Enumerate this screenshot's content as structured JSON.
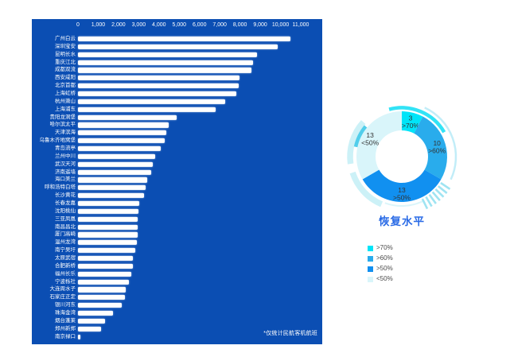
{
  "page": {
    "background": "#FFFFFF"
  },
  "bar_panel": {
    "background": "#0B4EB3"
  },
  "decor_colors": {
    "outer_cyan_arc": "#27E2F5",
    "thin_light_arc": "#8FDFF2",
    "pale_thick_arc": "#C3EEF6",
    "teal_arc": "#3EC9E9",
    "hatch_stripes": "#9FE4F2"
  },
  "chart_data": [
    {
      "type": "bar",
      "orientation": "horizontal",
      "title": "",
      "xlabel": "",
      "ylabel": "",
      "xlim": [
        0,
        11000
      ],
      "x_ticks": [
        0,
        1000,
        2000,
        3000,
        4000,
        5000,
        6000,
        7000,
        8000,
        9000,
        10000,
        11000
      ],
      "x_tick_labels": [
        "0",
        "1,000",
        "2,000",
        "3,000",
        "4,000",
        "5,000",
        "6,000",
        "7,000",
        "8,000",
        "9,000",
        "10,000",
        "11,000"
      ],
      "grid": false,
      "bar_color": "#FFFFFF",
      "label_color": "#FFFFFF",
      "background": "#0B4EB3",
      "note": "*仅统计民航客机航班",
      "categories": [
        "广州白云",
        "深圳宝安",
        "昆明长水",
        "重庆江北",
        "成都双流",
        "西安咸阳",
        "北京首都",
        "上海虹桥",
        "杭州萧山",
        "上海浦东",
        "贵阳龙洞堡",
        "哈尔滨太平",
        "天津滨海",
        "乌鲁木齐地窝堡",
        "青岛流亭",
        "兰州中川",
        "武汉天河",
        "济南遥墙",
        "海口美兰",
        "呼和浩特白塔",
        "长沙黄花",
        "长春龙嘉",
        "沈阳桃仙",
        "三亚凤凰",
        "南昌昌北",
        "厦门高崎",
        "温州龙湾",
        "南宁吴圩",
        "太原武宿",
        "合肥新桥",
        "福州长乐",
        "宁波栎社",
        "大连周水子",
        "石家庄正定",
        "银川河东",
        "珠海金湾",
        "烟台蓬莱",
        "郑州新郑",
        "南京禄口"
      ],
      "values": [
        10480,
        9850,
        8850,
        8650,
        8550,
        7990,
        7950,
        7810,
        7260,
        6800,
        4870,
        4480,
        4360,
        4280,
        4080,
        3810,
        3700,
        3610,
        3420,
        3340,
        3280,
        3040,
        2990,
        2960,
        2950,
        2940,
        2900,
        2830,
        2720,
        2700,
        2630,
        2530,
        2360,
        2320,
        2160,
        1730,
        1340,
        1140,
        120
      ]
    },
    {
      "type": "pie",
      "title": "恢复水平",
      "title_color": "#2A6BE6",
      "donut": true,
      "legend_position": "bottom",
      "label_color": "#333333",
      "slices": [
        {
          "label": ">70%",
          "value": 3,
          "color": "#00E4F8"
        },
        {
          "label": ">60%",
          "value": 10,
          "color": "#29ACEC"
        },
        {
          "label": ">50%",
          "value": 13,
          "color": "#1190F0"
        },
        {
          "label": "<50%",
          "value": 13,
          "color": "#D9F5FA"
        }
      ]
    }
  ]
}
